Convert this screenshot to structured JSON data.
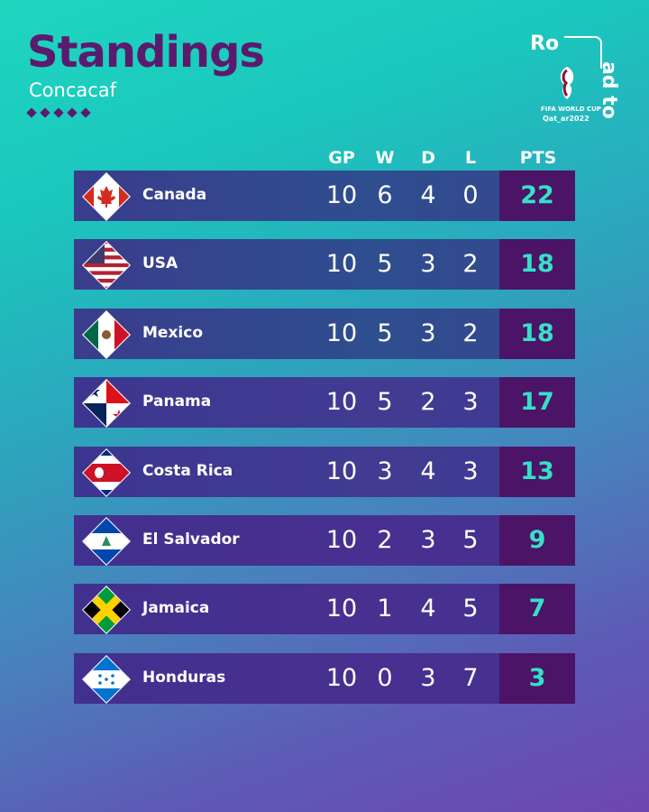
{
  "header": {
    "title": "Standings",
    "subtitle": "Concacaf",
    "logo_top": "Ro",
    "logo_side": "ad to",
    "logo_fifa": "FIFA WORLD CUP",
    "logo_qatar": "Qat_ar2022"
  },
  "columns": {
    "gp": "GP",
    "w": "W",
    "d": "D",
    "l": "L",
    "pts": "PTS"
  },
  "colors": {
    "title": "#5a1b6e",
    "pts_bg": "#4b1466",
    "pts_text": "#36e0c8"
  },
  "standings": [
    {
      "team": "Canada",
      "flag": "canada-flag",
      "gp": "10",
      "w": "6",
      "d": "4",
      "l": "0",
      "pts": "22"
    },
    {
      "team": "USA",
      "flag": "usa-flag",
      "gp": "10",
      "w": "5",
      "d": "3",
      "l": "2",
      "pts": "18"
    },
    {
      "team": "Mexico",
      "flag": "mexico-flag",
      "gp": "10",
      "w": "5",
      "d": "3",
      "l": "2",
      "pts": "18"
    },
    {
      "team": "Panama",
      "flag": "panama-flag",
      "gp": "10",
      "w": "5",
      "d": "2",
      "l": "3",
      "pts": "17"
    },
    {
      "team": "Costa Rica",
      "flag": "costa-rica-flag",
      "gp": "10",
      "w": "3",
      "d": "4",
      "l": "3",
      "pts": "13"
    },
    {
      "team": "El Salvador",
      "flag": "el-salvador-flag",
      "gp": "10",
      "w": "2",
      "d": "3",
      "l": "5",
      "pts": "9"
    },
    {
      "team": "Jamaica",
      "flag": "jamaica-flag",
      "gp": "10",
      "w": "1",
      "d": "4",
      "l": "5",
      "pts": "7"
    },
    {
      "team": "Honduras",
      "flag": "honduras-flag",
      "gp": "10",
      "w": "0",
      "d": "3",
      "l": "7",
      "pts": "3"
    }
  ]
}
